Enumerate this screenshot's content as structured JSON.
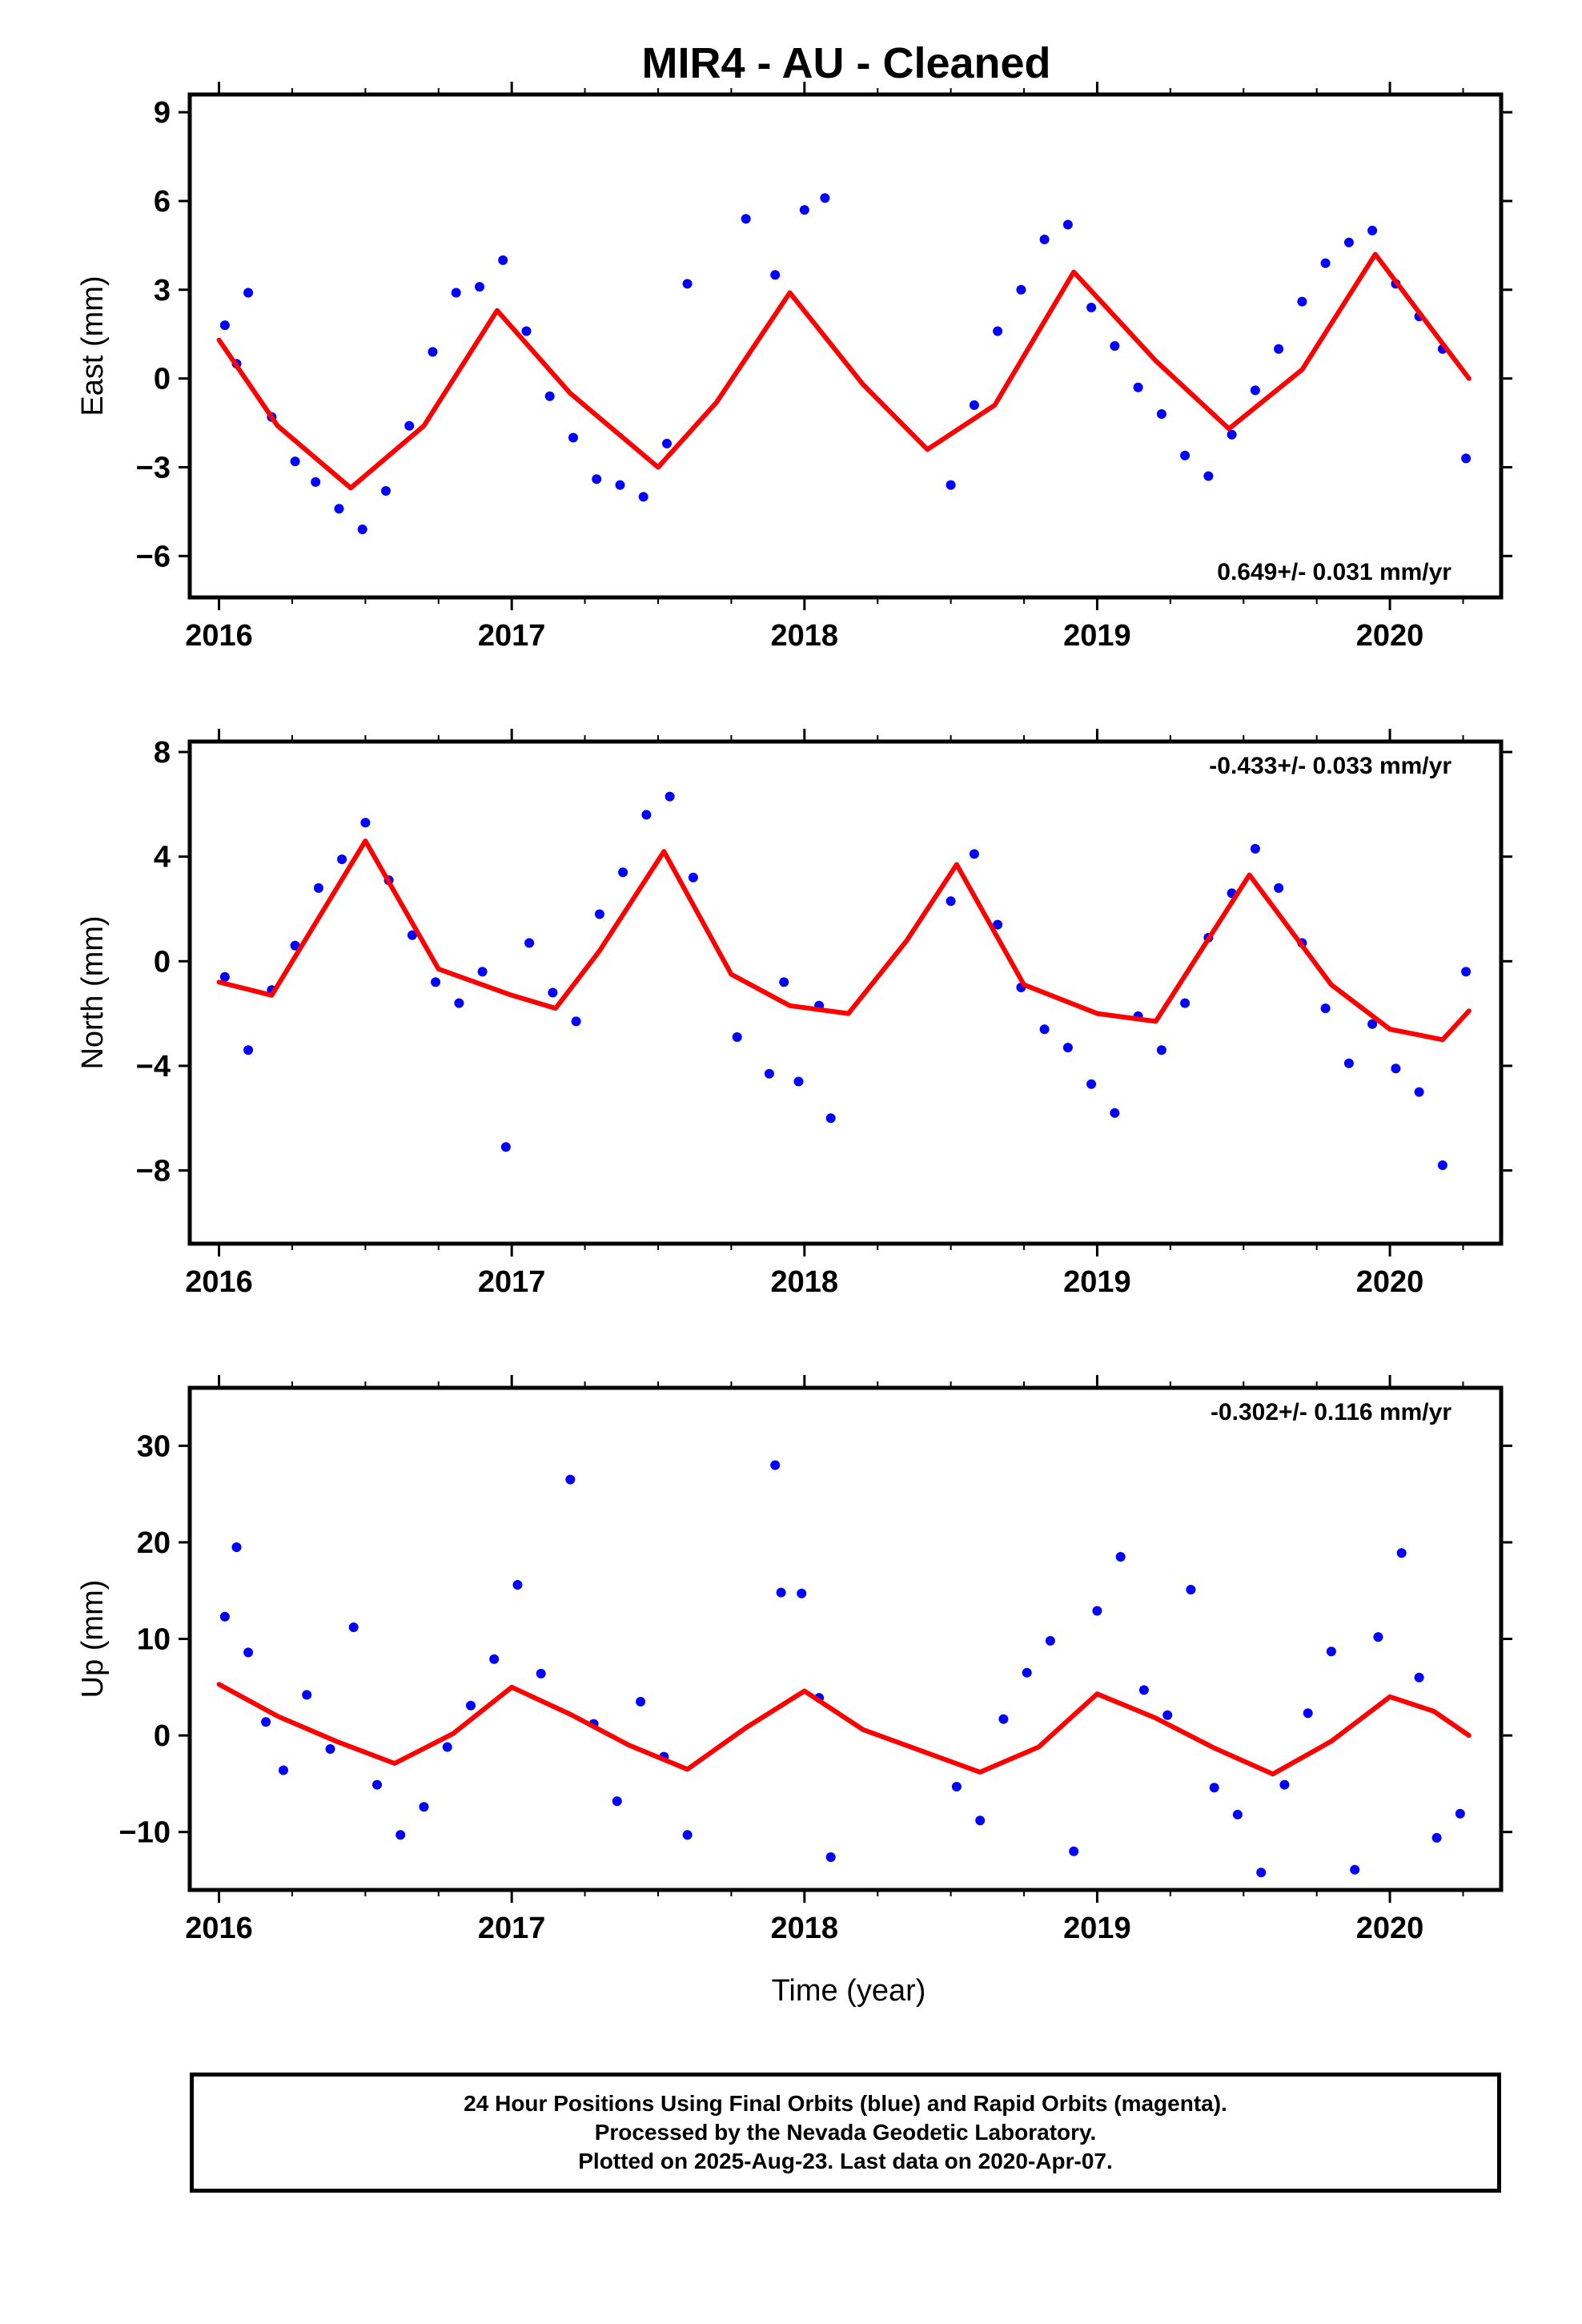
{
  "title": "MIR4  - AU - Cleaned",
  "xlabel": "Time (year)",
  "footer": {
    "line1": "24 Hour Positions Using Final Orbits (blue) and Rapid Orbits (magenta).",
    "line2": "Processed by the Nevada Geodetic Laboratory.",
    "line3": "Plotted on 2025-Aug-23. Last data on 2020-Apr-07."
  },
  "colors": {
    "points": "#0000ff",
    "fit": "#ff0000",
    "axes": "#000000"
  },
  "chart_data": [
    {
      "type": "scatter",
      "ylabel": "East (mm)",
      "xlim": [
        2015.9,
        2020.38
      ],
      "ylim": [
        -7.4,
        9.6
      ],
      "yticks": [
        -6,
        -3,
        0,
        3,
        6,
        9
      ],
      "xticks": [
        2016,
        2017,
        2018,
        2019,
        2020
      ],
      "rate_text": "0.649+/- 0.031 mm/yr",
      "rate_position": "bottom-right",
      "fit_curve": {
        "x": [
          2016.0,
          2016.2,
          2016.45,
          2016.7,
          2016.95,
          2017.2,
          2017.5,
          2017.7,
          2017.95,
          2018.2,
          2018.42,
          2018.65,
          2018.92,
          2019.2,
          2019.45,
          2019.7,
          2019.95,
          2020.27
        ],
        "y": [
          1.3,
          -1.6,
          -3.7,
          -1.6,
          2.3,
          -0.5,
          -3.0,
          -0.8,
          2.9,
          -0.2,
          -2.4,
          -0.9,
          3.6,
          0.6,
          -1.7,
          0.3,
          4.2,
          0.0
        ]
      },
      "points": {
        "x": [
          2016.02,
          2016.06,
          2016.1,
          2016.18,
          2016.26,
          2016.33,
          2016.41,
          2016.49,
          2016.57,
          2016.65,
          2016.73,
          2016.81,
          2016.89,
          2016.97,
          2017.05,
          2017.13,
          2017.21,
          2017.29,
          2017.37,
          2017.45,
          2017.53,
          2017.6,
          2017.8,
          2017.9,
          2018.0,
          2018.07,
          2018.5,
          2018.58,
          2018.66,
          2018.74,
          2018.82,
          2018.9,
          2018.98,
          2019.06,
          2019.14,
          2019.22,
          2019.3,
          2019.38,
          2019.46,
          2019.54,
          2019.62,
          2019.7,
          2019.78,
          2019.86,
          2019.94,
          2020.02,
          2020.1,
          2020.18,
          2020.26
        ],
        "y": [
          1.8,
          0.5,
          2.9,
          -1.3,
          -2.8,
          -3.5,
          -4.4,
          -5.1,
          -3.8,
          -1.6,
          0.9,
          2.9,
          3.1,
          4.0,
          1.6,
          -0.6,
          -2.0,
          -3.4,
          -3.6,
          -4.0,
          -2.2,
          3.2,
          5.4,
          3.5,
          5.7,
          6.1,
          -3.6,
          -0.9,
          1.6,
          3.0,
          4.7,
          5.2,
          2.4,
          1.1,
          -0.3,
          -1.2,
          -2.6,
          -3.3,
          -1.9,
          -0.4,
          1.0,
          2.6,
          3.9,
          4.6,
          5.0,
          3.2,
          2.1,
          1.0,
          -2.7
        ]
      }
    },
    {
      "type": "scatter",
      "ylabel": "North (mm)",
      "xlim": [
        2015.9,
        2020.38
      ],
      "ylim": [
        -10.8,
        8.4
      ],
      "yticks": [
        -8,
        -4,
        0,
        4,
        8
      ],
      "xticks": [
        2016,
        2017,
        2018,
        2019,
        2020
      ],
      "rate_text": "-0.433+/- 0.033 mm/yr",
      "rate_position": "top-right",
      "fit_curve": {
        "x": [
          2016.0,
          2016.18,
          2016.5,
          2016.75,
          2017.0,
          2017.15,
          2017.3,
          2017.52,
          2017.75,
          2017.95,
          2018.15,
          2018.35,
          2018.52,
          2018.75,
          2019.0,
          2019.2,
          2019.52,
          2019.8,
          2020.0,
          2020.18,
          2020.27
        ],
        "y": [
          -0.8,
          -1.3,
          4.6,
          -0.3,
          -1.3,
          -1.8,
          0.4,
          4.2,
          -0.5,
          -1.7,
          -2.0,
          0.8,
          3.7,
          -0.9,
          -2.0,
          -2.3,
          3.3,
          -0.9,
          -2.6,
          -3.0,
          -1.9
        ]
      },
      "points": {
        "x": [
          2016.02,
          2016.1,
          2016.18,
          2016.26,
          2016.34,
          2016.42,
          2016.5,
          2016.58,
          2016.66,
          2016.74,
          2016.82,
          2016.9,
          2016.98,
          2017.06,
          2017.14,
          2017.22,
          2017.3,
          2017.38,
          2017.46,
          2017.54,
          2017.62,
          2017.77,
          2017.88,
          2017.93,
          2017.98,
          2018.05,
          2018.09,
          2018.5,
          2018.58,
          2018.66,
          2018.74,
          2018.82,
          2018.9,
          2018.98,
          2019.06,
          2019.14,
          2019.22,
          2019.3,
          2019.38,
          2019.46,
          2019.54,
          2019.62,
          2019.7,
          2019.78,
          2019.86,
          2019.94,
          2020.02,
          2020.1,
          2020.18,
          2020.26
        ],
        "y": [
          -0.6,
          -3.4,
          -1.1,
          0.6,
          2.8,
          3.9,
          5.3,
          3.1,
          1.0,
          -0.8,
          -1.6,
          -0.4,
          -7.1,
          0.7,
          -1.2,
          -2.3,
          1.8,
          3.4,
          5.6,
          6.3,
          3.2,
          -2.9,
          -4.3,
          -0.8,
          -4.6,
          -1.7,
          -6.0,
          2.3,
          4.1,
          1.4,
          -1.0,
          -2.6,
          -3.3,
          -4.7,
          -5.8,
          -2.1,
          -3.4,
          -1.6,
          0.9,
          2.6,
          4.3,
          2.8,
          0.7,
          -1.8,
          -3.9,
          -2.4,
          -4.1,
          -5.0,
          -7.8,
          -0.4
        ]
      }
    },
    {
      "type": "scatter",
      "ylabel": "Up (mm)",
      "xlim": [
        2015.9,
        2020.38
      ],
      "ylim": [
        -16.0,
        36.0
      ],
      "yticks": [
        -10,
        0,
        10,
        20,
        30
      ],
      "xticks": [
        2016,
        2017,
        2018,
        2019,
        2020
      ],
      "rate_text": "-0.302+/- 0.116 mm/yr",
      "rate_position": "top-right",
      "fit_curve": {
        "x": [
          2016.0,
          2016.2,
          2016.4,
          2016.6,
          2016.8,
          2017.0,
          2017.2,
          2017.4,
          2017.6,
          2017.8,
          2018.0,
          2018.2,
          2018.4,
          2018.6,
          2018.8,
          2019.0,
          2019.2,
          2019.4,
          2019.6,
          2019.8,
          2020.0,
          2020.15,
          2020.27
        ],
        "y": [
          5.3,
          2.0,
          -0.6,
          -2.9,
          0.2,
          5.0,
          2.2,
          -1.0,
          -3.5,
          0.8,
          4.6,
          0.6,
          -1.6,
          -3.8,
          -1.2,
          4.3,
          1.8,
          -1.3,
          -4.0,
          -0.6,
          4.0,
          2.5,
          0.0
        ]
      },
      "points": {
        "x": [
          2016.02,
          2016.06,
          2016.1,
          2016.16,
          2016.22,
          2016.3,
          2016.38,
          2016.46,
          2016.54,
          2016.62,
          2016.7,
          2016.78,
          2016.86,
          2016.94,
          2017.02,
          2017.1,
          2017.2,
          2017.28,
          2017.36,
          2017.44,
          2017.52,
          2017.6,
          2017.9,
          2017.92,
          2017.99,
          2018.05,
          2018.09,
          2018.52,
          2018.6,
          2018.68,
          2018.76,
          2018.84,
          2018.92,
          2019.0,
          2019.08,
          2019.16,
          2019.24,
          2019.32,
          2019.4,
          2019.48,
          2019.56,
          2019.64,
          2019.72,
          2019.8,
          2019.88,
          2019.96,
          2020.04,
          2020.1,
          2020.16,
          2020.24
        ],
        "y": [
          12.3,
          19.5,
          8.6,
          1.4,
          -3.6,
          4.2,
          -1.4,
          11.2,
          -5.1,
          -10.3,
          -7.4,
          -1.2,
          3.1,
          7.9,
          15.6,
          6.4,
          26.5,
          1.2,
          -6.8,
          3.5,
          -2.2,
          -10.3,
          28.0,
          14.8,
          14.7,
          3.9,
          -12.6,
          -5.3,
          -8.8,
          1.7,
          6.5,
          9.8,
          -12.0,
          12.9,
          18.5,
          4.7,
          2.1,
          15.1,
          -5.4,
          -8.2,
          -14.2,
          -5.1,
          2.3,
          8.7,
          -13.9,
          10.2,
          18.9,
          6.0,
          -10.6,
          -8.1
        ]
      }
    }
  ]
}
